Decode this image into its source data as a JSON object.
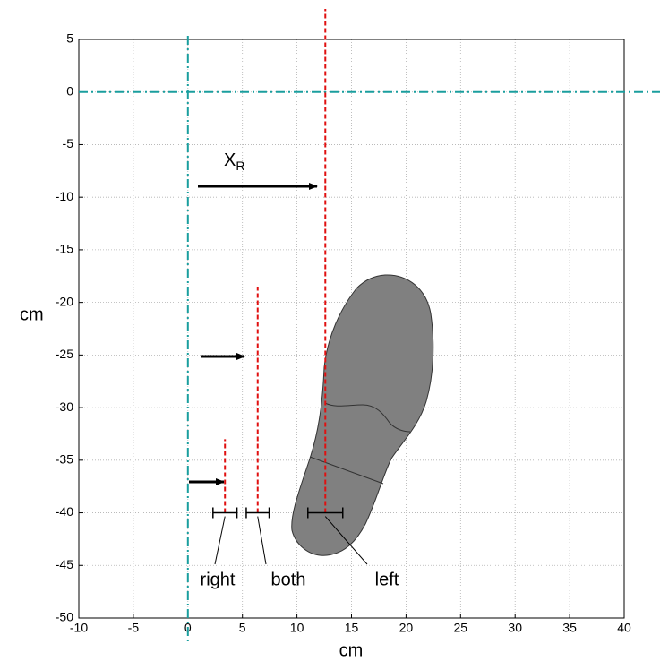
{
  "chart_data": {
    "type": "estimates",
    "xlabel": "cm",
    "ylabel": "cm",
    "xlim": [
      -10,
      40
    ],
    "ylim": [
      -50,
      5
    ],
    "xticks": [
      -10,
      -5,
      0,
      5,
      10,
      15,
      20,
      25,
      30,
      35,
      40
    ],
    "yticks": [
      -50,
      -45,
      -40,
      -35,
      -30,
      -25,
      -20,
      -15,
      -10,
      -5,
      0,
      5
    ],
    "grid": true,
    "reference_lines": {
      "x": 0,
      "y": 0,
      "color": "#1a9e9e"
    },
    "annotation": {
      "text": "X",
      "subscript": "R"
    },
    "estimates": [
      {
        "name": "right",
        "x": 3.4,
        "y": [
          -40,
          -33
        ],
        "error": 1.1,
        "color": "#e01010"
      },
      {
        "name": "both",
        "x": 6.4,
        "y": [
          -40,
          -18.5
        ],
        "error": 1.05,
        "color": "#e01010"
      },
      {
        "name": "left",
        "x": 12.6,
        "y": [
          -40,
          7.9
        ],
        "error": 1.6,
        "color": "#e01010"
      }
    ]
  }
}
